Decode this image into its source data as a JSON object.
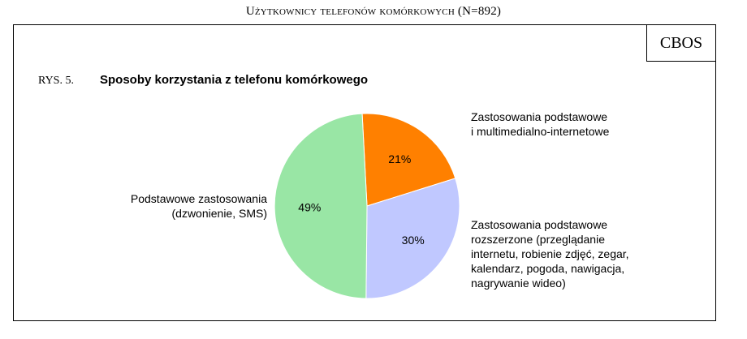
{
  "header": {
    "caption": "Użytkownicy telefonów komórkowych (N=892)",
    "source_badge": "CBOS"
  },
  "figure": {
    "number": "RYS. 5.",
    "title": "Sposoby korzystania z telefonu komórkowego"
  },
  "chart_data": {
    "type": "pie",
    "title": "Sposoby korzystania z telefonu komórkowego",
    "value_format": "percent",
    "slices": [
      {
        "label": "Zastosowania podstawowe\ni multimedialno-internetowe",
        "value": 21,
        "value_label": "21%",
        "color": "#ff8000"
      },
      {
        "label": "Zastosowania podstawowe\nrozszerzone (przeglądanie\ninternetu, robienie zdjęć, zegar,\nkalendarz, pogoda, nawigacja,\nnagrywanie wideo)",
        "value": 30,
        "value_label": "30%",
        "color": "#c0c8ff"
      },
      {
        "label": "Podstawowe zastosowania\n(dzwonienie, SMS)",
        "value": 49,
        "value_label": "49%",
        "color": "#99e6a5"
      }
    ]
  }
}
